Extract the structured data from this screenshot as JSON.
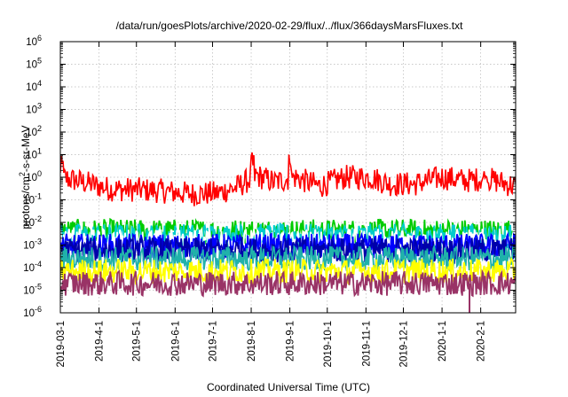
{
  "chart_data": {
    "type": "line",
    "title": "/data/run/goesPlots/archive/2020-02-29/flux/../flux/366daysMarsFluxes.txt",
    "xlabel": "Coordinated Universal Time (UTC)",
    "ylabel": "protons/cm2-s-sr-MeV",
    "ylabel_parts": {
      "main": "protons/cm",
      "sup": "2",
      "rest": "-s-sr-MeV"
    },
    "y_scale": "log",
    "ylim": [
      1e-06,
      1000000.0
    ],
    "yticks": [
      {
        "base": "10",
        "exp": "6"
      },
      {
        "base": "10",
        "exp": "5"
      },
      {
        "base": "10",
        "exp": "4"
      },
      {
        "base": "10",
        "exp": "3"
      },
      {
        "base": "10",
        "exp": "2"
      },
      {
        "base": "10",
        "exp": "1"
      },
      {
        "base": "10",
        "exp": "0"
      },
      {
        "base": "10",
        "exp": "-1"
      },
      {
        "base": "10",
        "exp": "-2"
      },
      {
        "base": "10",
        "exp": "-3"
      },
      {
        "base": "10",
        "exp": "-4"
      },
      {
        "base": "10",
        "exp": "-5"
      },
      {
        "base": "10",
        "exp": "-6"
      }
    ],
    "xlim": [
      "2019-03-01",
      "2020-02-29"
    ],
    "xticks": [
      "2019-03-1",
      "2019-4-1",
      "2019-5-1",
      "2019-6-1",
      "2019-7-1",
      "2019-8-1",
      "2019-9-1",
      "2019-10-1",
      "2019-11-1",
      "2019-12-1",
      "2020-1-1",
      "2020-2-1"
    ],
    "grid": true,
    "series": [
      {
        "color": "#ff0000",
        "baseline": [
          [
            "2019-03-01",
            1.0
          ],
          [
            "2019-03-20",
            0.6
          ],
          [
            "2019-04-10",
            0.3
          ],
          [
            "2019-05-01",
            0.28
          ],
          [
            "2019-05-20",
            0.25
          ],
          [
            "2019-06-15",
            0.18
          ],
          [
            "2019-07-05",
            0.2
          ],
          [
            "2019-07-20",
            0.35
          ],
          [
            "2019-08-05",
            1.2
          ],
          [
            "2019-08-20",
            0.6
          ],
          [
            "2019-09-05",
            1.0
          ],
          [
            "2019-09-25",
            0.4
          ],
          [
            "2019-10-15",
            1.0
          ],
          [
            "2019-11-05",
            1.0
          ],
          [
            "2019-11-20",
            0.5
          ],
          [
            "2019-12-10",
            0.5
          ],
          [
            "2020-01-01",
            1.0
          ],
          [
            "2020-01-20",
            0.7
          ],
          [
            "2020-02-05",
            0.9
          ],
          [
            "2020-02-29",
            0.4
          ]
        ],
        "peaks": [
          [
            "2019-09-01",
            10.0
          ],
          [
            "2019-08-02",
            4.0
          ],
          [
            "2020-02-05",
            4.0
          ],
          [
            "2019-03-02",
            3.0
          ]
        ]
      },
      {
        "color": "#00cc00",
        "baseline": [
          [
            "2019-03-01",
            0.004
          ],
          [
            "2020-02-29",
            0.004
          ]
        ]
      },
      {
        "color": "#00cccc",
        "baseline": [
          [
            "2019-03-01",
            0.0025
          ],
          [
            "2020-02-29",
            0.0025
          ]
        ]
      },
      {
        "color": "#ffffff",
        "baseline": [
          [
            "2019-03-01",
            0.0015
          ],
          [
            "2020-02-29",
            0.0015
          ]
        ]
      },
      {
        "color": "#0000ff",
        "baseline": [
          [
            "2019-03-01",
            0.0009
          ],
          [
            "2020-02-29",
            0.0009
          ]
        ]
      },
      {
        "color": "#0000aa",
        "baseline": [
          [
            "2019-03-01",
            0.0006
          ],
          [
            "2020-02-29",
            0.0006
          ]
        ]
      },
      {
        "color": "#20b2aa",
        "baseline": [
          [
            "2019-03-01",
            0.00025
          ],
          [
            "2020-02-29",
            0.00025
          ]
        ]
      },
      {
        "color": "#ffff00",
        "baseline": [
          [
            "2019-03-01",
            7e-05
          ],
          [
            "2020-02-29",
            7e-05
          ]
        ]
      },
      {
        "color": "#993366",
        "baseline": [
          [
            "2019-03-01",
            2e-05
          ],
          [
            "2020-02-29",
            2e-05
          ]
        ]
      }
    ]
  }
}
